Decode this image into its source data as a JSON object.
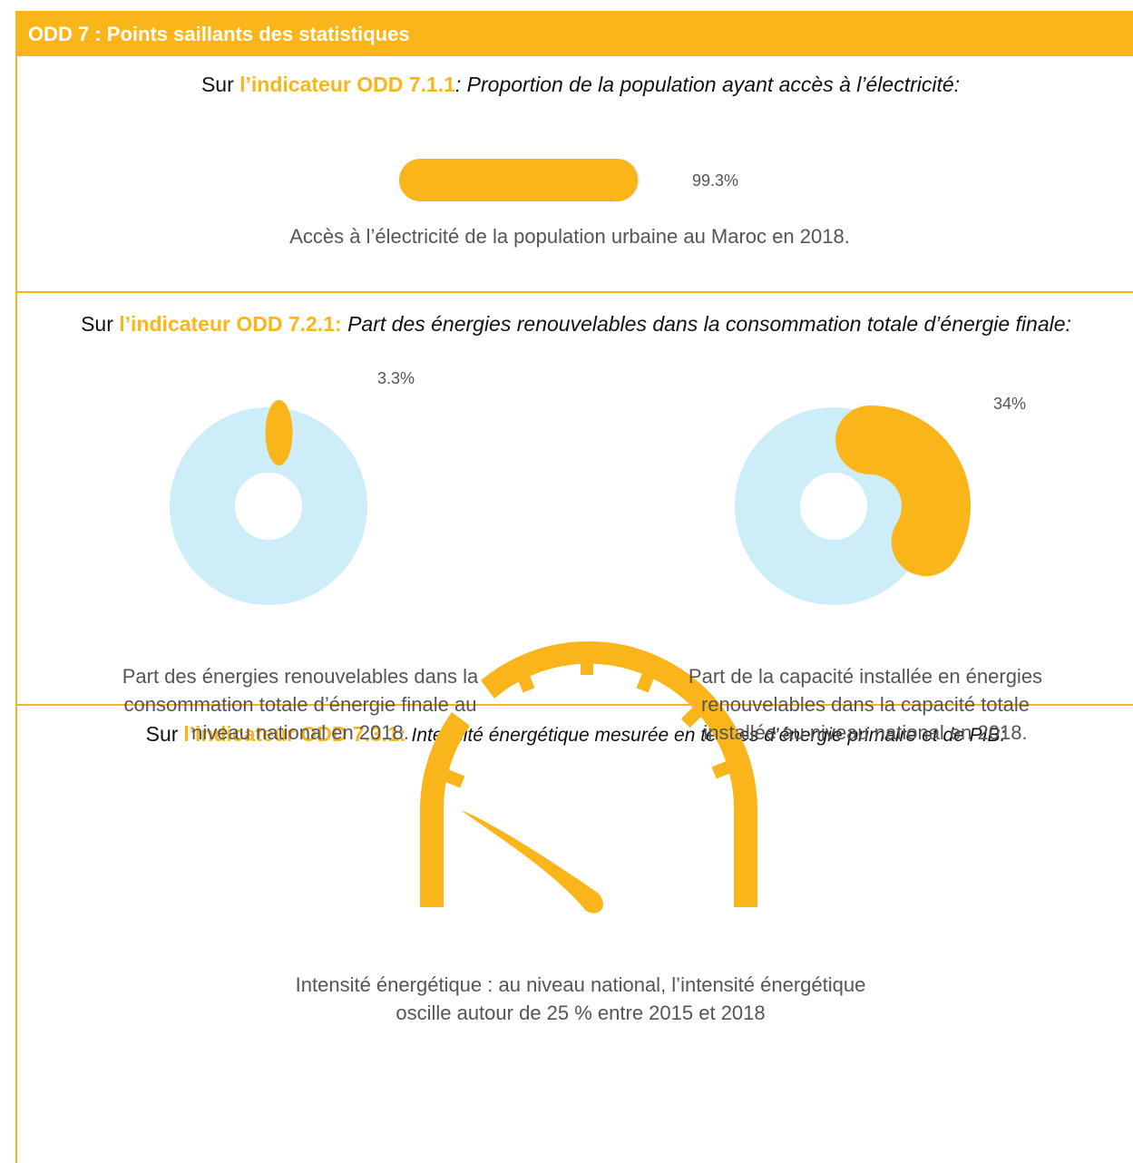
{
  "header": {
    "title": "ODD 7 : Points saillants des statistiques"
  },
  "sections": [
    {
      "prefix": "Sur",
      "indicator": "l’indicateur ODD 7.1.1",
      "description": ": Proportion de la population ayant accès à l’électricité:",
      "charts": [
        {
          "type": "progress",
          "value": 99.3,
          "value_label": "99.3%",
          "xlim": [
            0,
            100
          ],
          "color": "#f9b51a",
          "track_color": "#cdeef8",
          "caption": "Accès à l’électricité de la population urbaine au Maroc en 2018."
        }
      ]
    },
    {
      "prefix": "Sur",
      "indicator": "l’indicateur ODD 7.2.1:",
      "description": "Part des énergies renouvelables dans la consommation totale d’énergie finale:",
      "charts": [
        {
          "type": "donut",
          "value": 3.3,
          "value_label": "3.3%",
          "color": "#f9b51a",
          "track_color": "#cdeef8",
          "caption": [
            "Part des énergies renouvelables dans la",
            "consommation totale d’énergie finale au",
            "niveau national en 2018."
          ]
        },
        {
          "type": "donut",
          "value": 34,
          "value_label": "34%",
          "color": "#f9b51a",
          "track_color": "#cdeef8",
          "caption": [
            "Part de la capacité installée en énergies",
            "renouvelables dans la capacité totale",
            "installée au niveau national en 2018."
          ]
        }
      ]
    },
    {
      "prefix": "Sur",
      "indicator": "l’indicateur ODD 7.3.1:",
      "description": "Intensité énergétique mesurée en termes d’énergie primaire et de PIB:",
      "charts": [
        {
          "type": "gauge",
          "caption": [
            "Intensité énergétique : au niveau national, l’intensité énergétique",
            "oscille autour de 25 % entre 2015 et 2018"
          ]
        }
      ]
    }
  ]
}
